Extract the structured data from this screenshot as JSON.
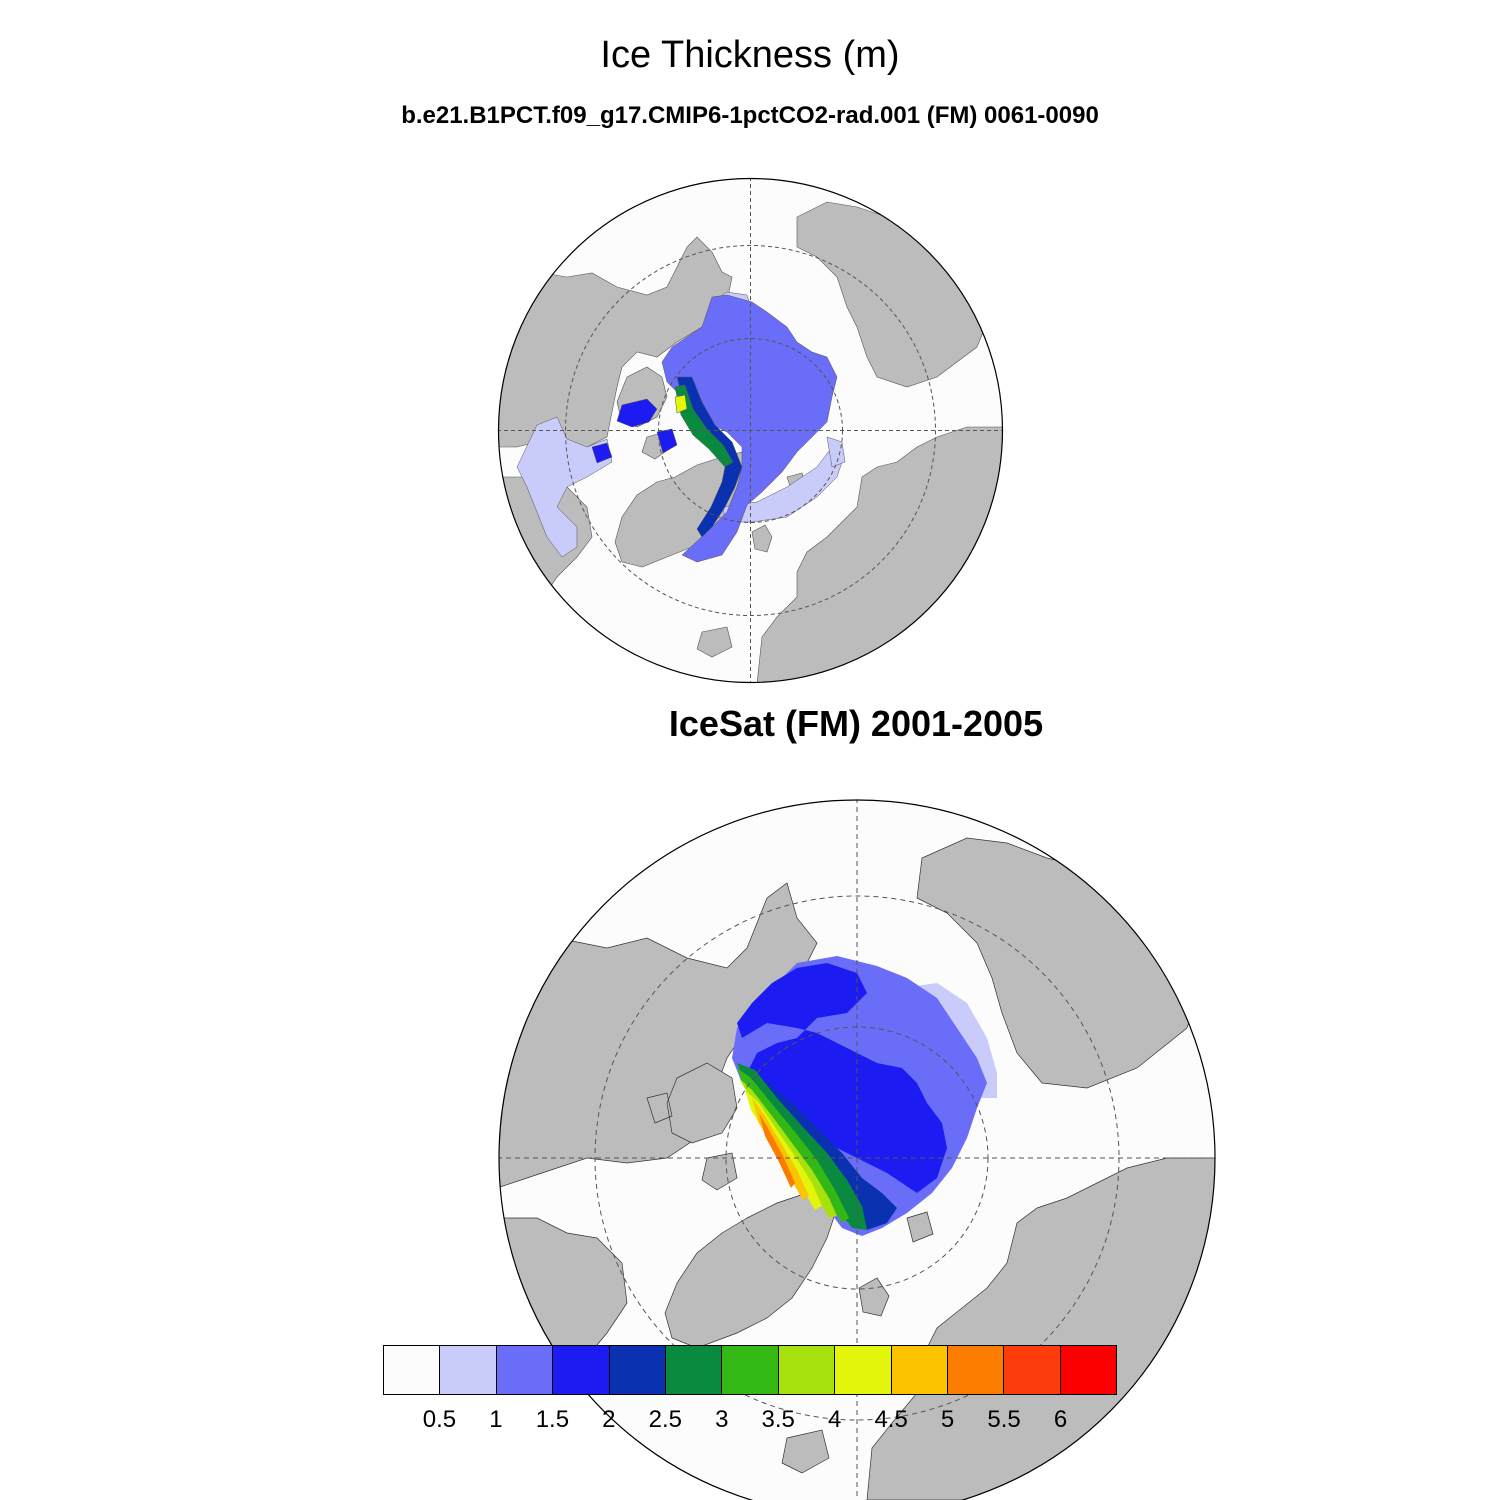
{
  "title": "Ice Thickness (m)",
  "panel1": {
    "title": "b.e21.B1PCT.f09_g17.CMIP6-1pctCO2-rad.001 (FM) 0061-0090"
  },
  "panel2": {
    "title": "IceSat (FM) 2001-2005"
  },
  "colorbar": {
    "colors": [
      "#fcfcfc",
      "#c9ccfa",
      "#6a6df7",
      "#1c1cf2",
      "#0a32b0",
      "#0a8a3e",
      "#34b815",
      "#a8e20e",
      "#e2f50a",
      "#fcc400",
      "#fc7c00",
      "#fc3c0a",
      "#fc0000"
    ],
    "labels": [
      "0.5",
      "1",
      "1.5",
      "2",
      "2.5",
      "3",
      "3.5",
      "4",
      "4.5",
      "5",
      "5.5",
      "6"
    ]
  },
  "colors": {
    "land": "#bcbcbc",
    "ocean": "#fcfcfc"
  }
}
